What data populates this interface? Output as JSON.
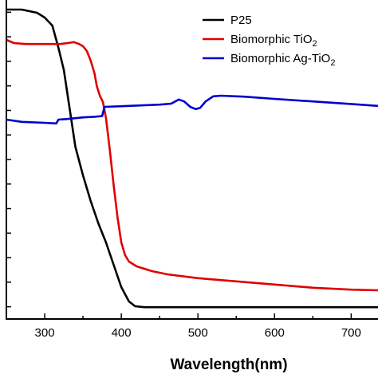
{
  "chart_data": {
    "type": "line",
    "title": "",
    "xlabel": "Wavelength(nm)",
    "ylabel": "",
    "xlim": [
      250,
      735
    ],
    "ylim": [
      0,
      1
    ],
    "x_ticks": [
      "300",
      "400",
      "500",
      "600",
      "700"
    ],
    "x_tick_values": [
      300,
      400,
      500,
      600,
      700
    ],
    "y_tick_count": 13,
    "y_tick_labels_visible": false,
    "grid": false,
    "legend": "top-right",
    "series": [
      {
        "name": "P25",
        "color": "#000000",
        "points": [
          [
            250,
            0.97
          ],
          [
            270,
            0.97
          ],
          [
            290,
            0.96
          ],
          [
            300,
            0.945
          ],
          [
            310,
            0.92
          ],
          [
            318,
            0.85
          ],
          [
            325,
            0.78
          ],
          [
            330,
            0.7
          ],
          [
            335,
            0.62
          ],
          [
            340,
            0.54
          ],
          [
            350,
            0.45
          ],
          [
            360,
            0.37
          ],
          [
            370,
            0.3
          ],
          [
            380,
            0.24
          ],
          [
            390,
            0.17
          ],
          [
            400,
            0.1
          ],
          [
            410,
            0.055
          ],
          [
            418,
            0.04
          ],
          [
            430,
            0.037
          ],
          [
            500,
            0.037
          ],
          [
            600,
            0.037
          ],
          [
            700,
            0.037
          ],
          [
            735,
            0.037
          ]
        ]
      },
      {
        "name": "Biomorphic TiO2",
        "color": "#e00000",
        "points": [
          [
            250,
            0.875
          ],
          [
            260,
            0.865
          ],
          [
            275,
            0.862
          ],
          [
            300,
            0.862
          ],
          [
            320,
            0.862
          ],
          [
            330,
            0.865
          ],
          [
            338,
            0.868
          ],
          [
            345,
            0.862
          ],
          [
            350,
            0.855
          ],
          [
            355,
            0.84
          ],
          [
            360,
            0.81
          ],
          [
            365,
            0.77
          ],
          [
            368,
            0.73
          ],
          [
            372,
            0.7
          ],
          [
            376,
            0.68
          ],
          [
            380,
            0.63
          ],
          [
            385,
            0.53
          ],
          [
            390,
            0.42
          ],
          [
            395,
            0.32
          ],
          [
            400,
            0.24
          ],
          [
            405,
            0.2
          ],
          [
            410,
            0.18
          ],
          [
            420,
            0.165
          ],
          [
            440,
            0.15
          ],
          [
            460,
            0.14
          ],
          [
            500,
            0.128
          ],
          [
            550,
            0.118
          ],
          [
            600,
            0.108
          ],
          [
            650,
            0.098
          ],
          [
            700,
            0.092
          ],
          [
            735,
            0.09
          ]
        ]
      },
      {
        "name": "Biomorphic Ag-TiO2",
        "color": "#0000cc",
        "points": [
          [
            250,
            0.625
          ],
          [
            270,
            0.618
          ],
          [
            300,
            0.615
          ],
          [
            315,
            0.613
          ],
          [
            318,
            0.625
          ],
          [
            330,
            0.627
          ],
          [
            350,
            0.632
          ],
          [
            365,
            0.634
          ],
          [
            375,
            0.636
          ],
          [
            378,
            0.665
          ],
          [
            400,
            0.667
          ],
          [
            450,
            0.672
          ],
          [
            465,
            0.675
          ],
          [
            475,
            0.688
          ],
          [
            482,
            0.682
          ],
          [
            490,
            0.665
          ],
          [
            497,
            0.658
          ],
          [
            503,
            0.662
          ],
          [
            510,
            0.682
          ],
          [
            520,
            0.698
          ],
          [
            530,
            0.7
          ],
          [
            560,
            0.697
          ],
          [
            600,
            0.69
          ],
          [
            650,
            0.682
          ],
          [
            700,
            0.674
          ],
          [
            735,
            0.668
          ]
        ]
      }
    ]
  },
  "legend": {
    "items": [
      {
        "text": "P25",
        "sub": ""
      },
      {
        "text": "Biomorphic TiO",
        "sub": "2"
      },
      {
        "text": "Biomorphic Ag-TiO",
        "sub": "2"
      }
    ]
  }
}
